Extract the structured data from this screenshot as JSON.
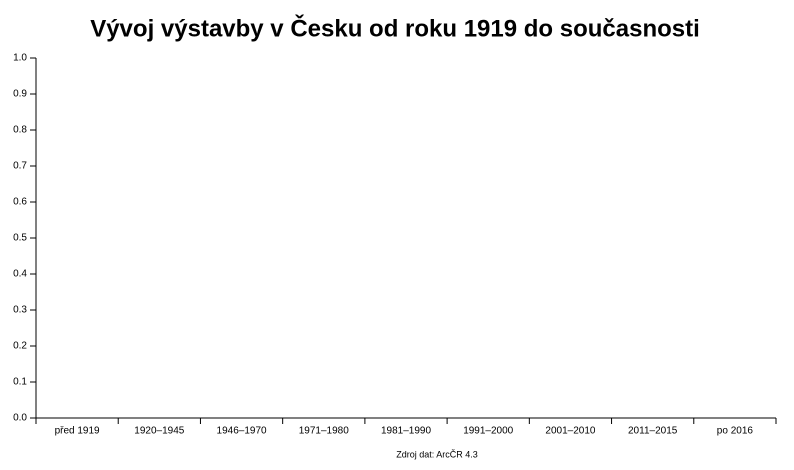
{
  "chart_data": {
    "type": "bar",
    "title": "Vývoj výstavby v Česku od roku 1919 do současnosti",
    "source": "Zdroj dat: ArcČR 4.3",
    "categories": [
      "před 1919",
      "1920–1945",
      "1946–1970",
      "1971–1980",
      "1981–1990",
      "1991–2000",
      "2001–2010",
      "2011–2015",
      "po 2016"
    ],
    "ylim": [
      0,
      1
    ],
    "yticks": [
      {
        "value": 0,
        "label": "0.0"
      },
      0.1,
      0.2,
      0.3,
      0.4,
      0.5,
      0.6,
      0.7,
      0.8,
      0.9,
      {
        "value": 1,
        "label": "1.0"
      }
    ]
  }
}
